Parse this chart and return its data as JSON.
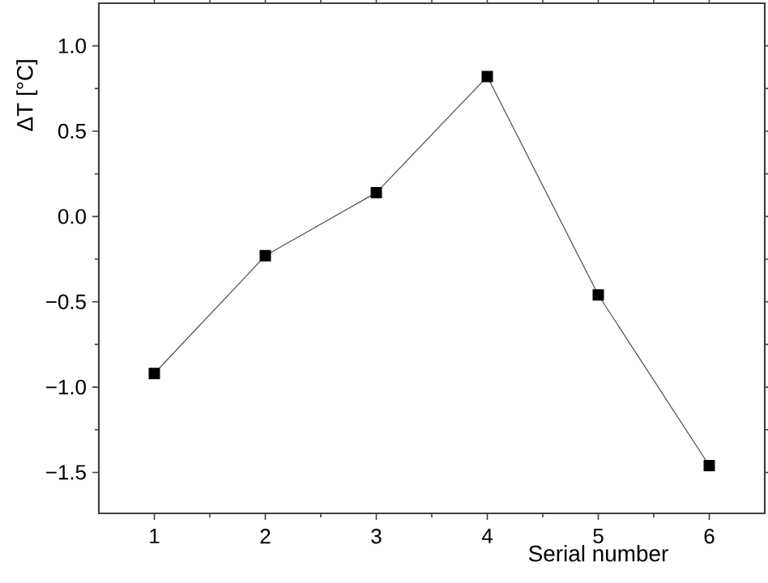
{
  "chart_data": {
    "type": "line",
    "xlabel": "Serial number",
    "ylabel": "ΔT [°C]",
    "x": [
      1,
      2,
      3,
      4,
      5,
      6
    ],
    "series": [
      {
        "color": "#000000",
        "values": [
          -0.92,
          -0.23,
          0.14,
          0.82,
          -0.46,
          -1.46
        ]
      }
    ],
    "xlim": [
      0.5,
      6.5
    ],
    "ylim": [
      -1.74,
      1.25
    ],
    "xticks": [
      1,
      2,
      3,
      4,
      5,
      6
    ],
    "yticks": [
      {
        "value": -1.5,
        "label": "−1.5"
      },
      {
        "value": -1.0,
        "label": "−1.0"
      },
      {
        "value": -0.5,
        "label": "−0.5"
      },
      {
        "value": 0.0,
        "label": "0.0"
      },
      {
        "value": 0.5,
        "label": "0.5"
      },
      {
        "value": 1.0,
        "label": "1.0"
      }
    ],
    "marker": "square",
    "line_style": "solid",
    "grid": false
  }
}
